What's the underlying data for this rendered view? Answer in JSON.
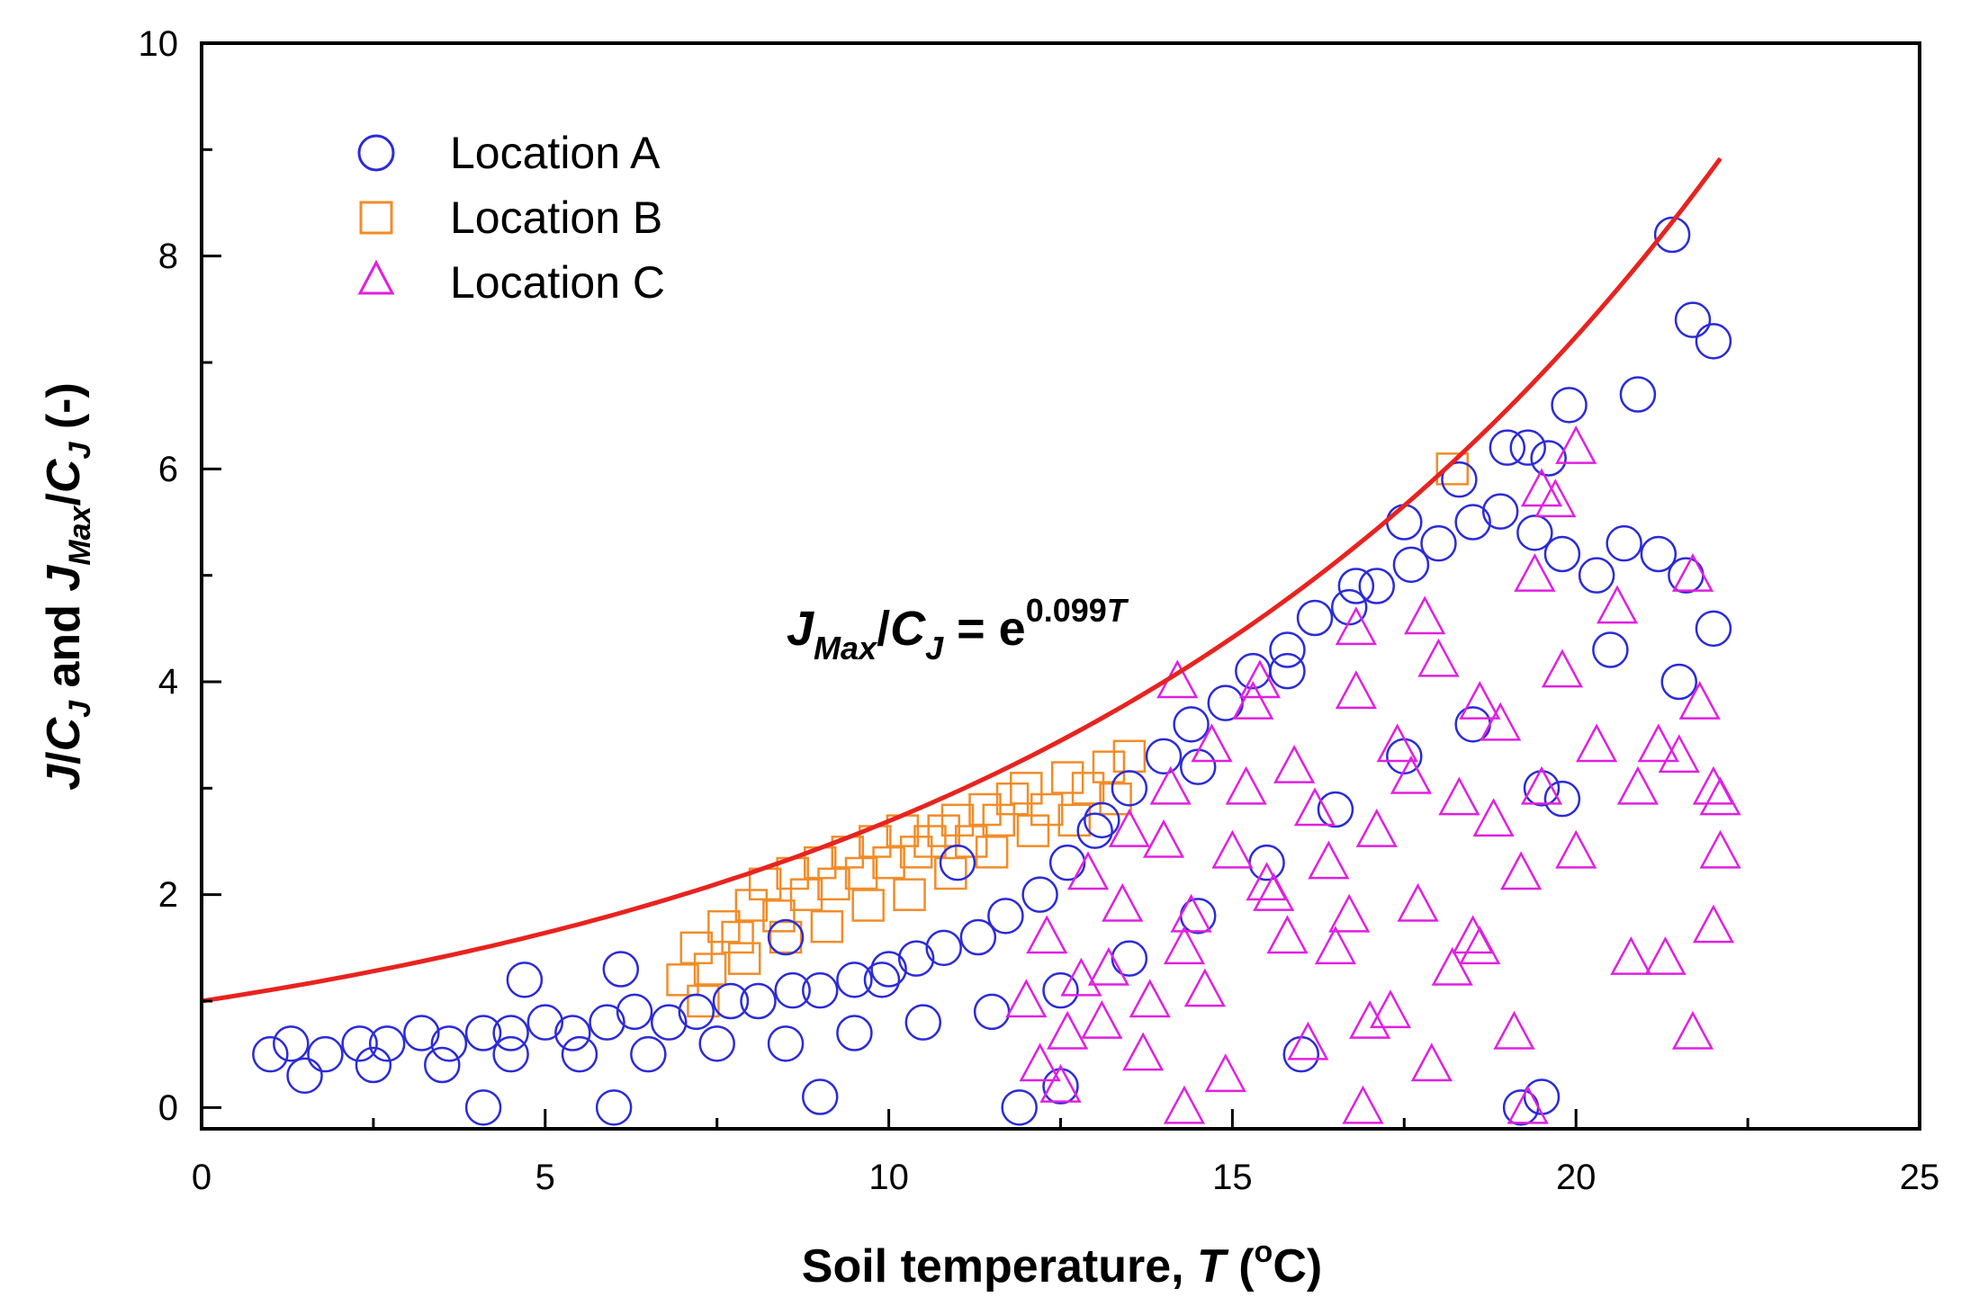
{
  "chart_data": {
    "type": "scatter",
    "xlabel_parts": [
      "Soil temperature, ",
      "T",
      " (",
      "o",
      "C)"
    ],
    "ylabel_parts": [
      "J",
      "/",
      "C",
      "J",
      " and ",
      "J",
      "Max",
      "/",
      "C",
      "J",
      " (-)"
    ],
    "xlim": [
      0,
      25
    ],
    "ylim": [
      -0.2,
      10
    ],
    "x_ticks": [
      "0",
      "5",
      "10",
      "15",
      "20",
      "25"
    ],
    "y_ticks": [
      "0",
      "2",
      "4",
      "6",
      "8",
      "10"
    ],
    "legend_position": "top-left",
    "annotation": {
      "parts": [
        "J",
        "Max",
        "/",
        "C",
        "J",
        " = e",
        "0.099",
        "T"
      ],
      "anchor": [
        8.5,
        4.35
      ]
    },
    "curve": {
      "equation": "y = exp(0.099*T)",
      "coefficient": 0.099,
      "x_range": [
        0,
        22.1
      ],
      "color": "#e8231f"
    },
    "series": [
      {
        "name": "Location A",
        "marker": "circle",
        "color": "#2b2bd9",
        "x": [
          1.0,
          1.3,
          1.8,
          2.3,
          2.7,
          3.2,
          3.6,
          4.1,
          4.5,
          5.0,
          5.4,
          5.9,
          6.3,
          6.8,
          7.2,
          7.7,
          8.1,
          8.6,
          9.0,
          9.5,
          9.9,
          10.4,
          10.8,
          11.3,
          11.7,
          12.2,
          12.6,
          13.1,
          13.5,
          14.0,
          14.4,
          14.9,
          15.3,
          15.8,
          16.2,
          16.7,
          17.1,
          17.6,
          18.0,
          18.5,
          18.9,
          19.4,
          19.8,
          20.3,
          20.7,
          21.2,
          21.6,
          22.0,
          1.5,
          2.5,
          3.5,
          4.5,
          5.5,
          6.5,
          7.5,
          8.5,
          9.5,
          10.5,
          11.5,
          12.5,
          13.5,
          14.5,
          15.5,
          16.5,
          17.5,
          18.5,
          19.5,
          20.5,
          21.5,
          4.7,
          6.1,
          8.5,
          10.0,
          11.0,
          13.0,
          14.5,
          15.8,
          16.8,
          17.5,
          18.3,
          19.0,
          19.3,
          19.6,
          19.9,
          19.8,
          21.4,
          21.7,
          22.0,
          20.9,
          4.1,
          6.0,
          9.0,
          11.9,
          12.5,
          16.0,
          19.2,
          19.5
        ],
        "y": [
          0.5,
          0.6,
          0.5,
          0.6,
          0.6,
          0.7,
          0.6,
          0.7,
          0.7,
          0.8,
          0.7,
          0.8,
          0.9,
          0.8,
          0.9,
          1.0,
          1.0,
          1.1,
          1.1,
          1.2,
          1.2,
          1.4,
          1.5,
          1.6,
          1.8,
          2.0,
          2.3,
          2.7,
          3.0,
          3.3,
          3.6,
          3.8,
          4.1,
          4.3,
          4.6,
          4.7,
          4.9,
          5.1,
          5.3,
          5.5,
          5.6,
          5.4,
          5.2,
          5.0,
          5.3,
          5.2,
          5.0,
          4.5,
          0.3,
          0.4,
          0.4,
          0.5,
          0.5,
          0.5,
          0.6,
          0.6,
          0.7,
          0.8,
          0.9,
          1.1,
          1.4,
          1.8,
          2.3,
          2.8,
          3.3,
          3.6,
          3.0,
          4.3,
          4.0,
          1.2,
          1.3,
          1.6,
          1.3,
          2.3,
          2.6,
          3.2,
          4.1,
          4.9,
          5.5,
          5.9,
          6.2,
          6.2,
          6.1,
          6.6,
          2.9,
          8.2,
          7.4,
          7.2,
          6.7,
          0.0,
          0.0,
          0.1,
          0.0,
          0.2,
          0.5,
          0.0,
          0.1
        ]
      },
      {
        "name": "Location B",
        "marker": "square",
        "color": "#f28c28",
        "x": [
          7.0,
          7.2,
          7.4,
          7.6,
          7.8,
          8.0,
          8.2,
          8.4,
          8.6,
          8.8,
          9.0,
          9.2,
          9.4,
          9.6,
          9.8,
          10.0,
          10.2,
          10.4,
          10.6,
          10.8,
          11.0,
          11.2,
          11.4,
          11.6,
          11.8,
          12.0,
          12.3,
          12.6,
          12.9,
          13.2,
          13.5,
          7.3,
          7.9,
          8.5,
          9.1,
          9.7,
          10.3,
          10.9,
          11.5,
          12.1,
          12.7,
          13.3,
          18.2
        ],
        "y": [
          1.2,
          1.5,
          1.3,
          1.7,
          1.6,
          1.9,
          2.1,
          1.8,
          2.2,
          2.0,
          2.3,
          2.1,
          2.4,
          2.2,
          2.5,
          2.3,
          2.6,
          2.4,
          2.5,
          2.6,
          2.7,
          2.5,
          2.8,
          2.7,
          2.9,
          3.0,
          2.8,
          3.1,
          3.0,
          3.2,
          3.3,
          1.0,
          1.4,
          1.6,
          1.7,
          1.9,
          2.0,
          2.2,
          2.4,
          2.6,
          2.7,
          2.9,
          6.0
        ]
      },
      {
        "name": "Location C",
        "marker": "triangle",
        "color": "#e020e0",
        "x": [
          12.0,
          12.3,
          12.6,
          12.9,
          13.2,
          13.5,
          13.8,
          14.1,
          14.4,
          14.7,
          15.0,
          15.3,
          15.6,
          15.9,
          16.2,
          16.5,
          16.8,
          17.1,
          17.4,
          17.7,
          18.0,
          18.3,
          18.6,
          18.9,
          19.2,
          19.5,
          19.8,
          12.2,
          12.8,
          13.4,
          14.0,
          14.6,
          15.2,
          15.8,
          16.4,
          17.0,
          17.6,
          18.2,
          18.8,
          19.4,
          20.0,
          12.5,
          13.1,
          13.7,
          14.3,
          14.9,
          15.5,
          16.1,
          16.7,
          17.3,
          17.9,
          18.5,
          19.1,
          19.7,
          14.2,
          15.4,
          16.8,
          17.8,
          18.6,
          19.5,
          20.0,
          20.3,
          20.6,
          20.9,
          21.2,
          21.5,
          21.7,
          21.8,
          22.0,
          22.1,
          20.8,
          21.3,
          21.7,
          22.0,
          22.1,
          14.3,
          16.9,
          19.3
        ],
        "y": [
          1.0,
          1.6,
          0.7,
          2.2,
          1.3,
          2.6,
          1.0,
          3.0,
          1.8,
          3.4,
          2.4,
          3.8,
          2.0,
          3.2,
          2.8,
          1.5,
          4.5,
          2.6,
          3.4,
          1.9,
          4.2,
          2.9,
          1.5,
          3.6,
          2.2,
          3.0,
          4.1,
          0.4,
          1.2,
          1.9,
          2.5,
          1.1,
          3.0,
          1.6,
          2.3,
          0.8,
          3.1,
          1.3,
          2.7,
          5.0,
          6.2,
          0.2,
          0.8,
          0.5,
          1.5,
          0.3,
          2.1,
          0.6,
          1.8,
          0.9,
          0.4,
          1.6,
          0.7,
          5.7,
          4.0,
          4.0,
          3.9,
          4.6,
          3.8,
          5.8,
          2.4,
          3.4,
          4.7,
          3.0,
          3.4,
          3.3,
          5.0,
          3.8,
          3.0,
          2.4,
          1.4,
          1.4,
          0.7,
          1.7,
          2.9,
          0.0,
          0.0,
          0.0
        ]
      }
    ]
  }
}
